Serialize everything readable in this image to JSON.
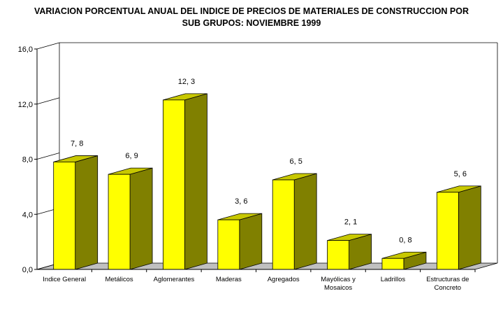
{
  "chart_data": {
    "type": "bar",
    "title_lines": [
      "VARIACION PORCENTUAL ANUAL DEL INDICE DE PRECIOS DE MATERIALES DE CONSTRUCCION POR",
      "SUB GRUPOS: NOVIEMBRE 1999"
    ],
    "categories": [
      [
        "Indice General"
      ],
      [
        "Metálicos"
      ],
      [
        "Aglomerantes"
      ],
      [
        "Maderas"
      ],
      [
        "Agregados"
      ],
      [
        "Mayólicas y",
        "Mosaicos"
      ],
      [
        "Ladrillos"
      ],
      [
        "Estructuras de",
        "Concreto"
      ]
    ],
    "values": [
      7.8,
      6.9,
      12.3,
      3.6,
      6.5,
      2.1,
      0.8,
      5.6
    ],
    "data_labels": [
      "7, 8",
      "6, 9",
      "12, 3",
      "3, 6",
      "6, 5",
      "2, 1",
      "0, 8",
      "5, 6"
    ],
    "y_ticks": [
      0,
      4,
      8,
      12,
      16
    ],
    "y_tick_labels": [
      "0,0",
      "4,0",
      "8,0",
      "12,0",
      "16,0"
    ],
    "ylim": [
      0,
      16
    ],
    "xlabel": "",
    "ylabel": "",
    "grid": false,
    "legend": "none",
    "colors": {
      "bar_front": "#ffff00",
      "bar_side": "#808000",
      "bar_top": "#c8c800",
      "floor": "#c0c0c0",
      "axis": "#000000"
    }
  }
}
